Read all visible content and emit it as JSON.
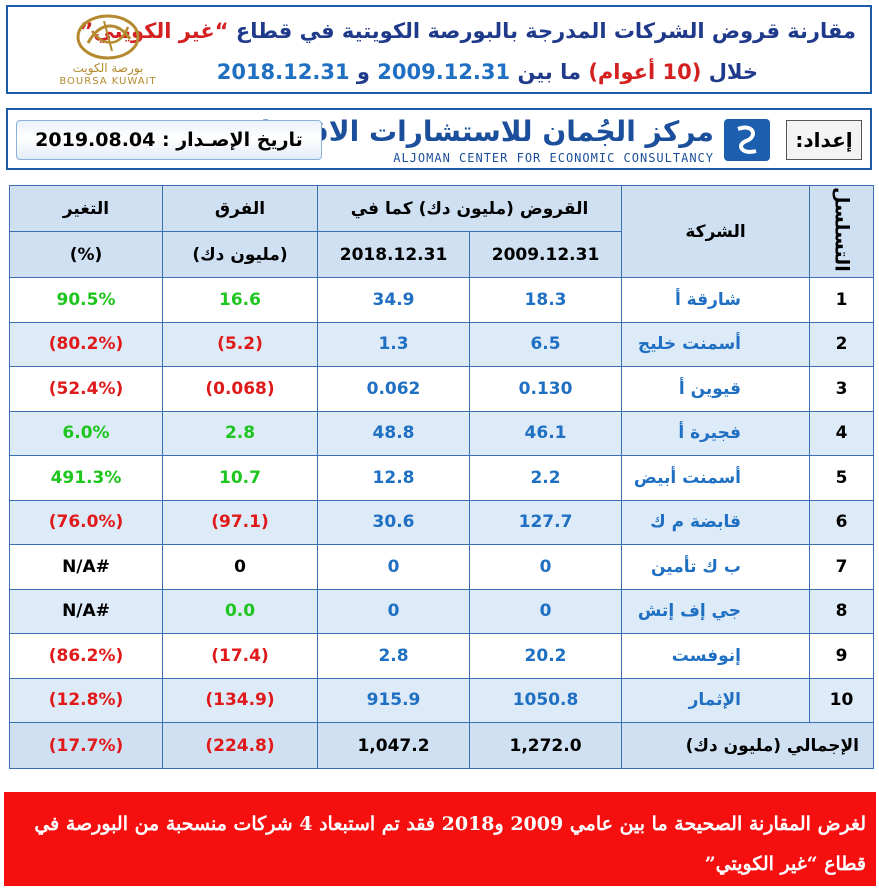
{
  "title": {
    "line1_main": "مقارنة قروض الشركات المدرجة بالبورصة الكويتية في قطاع",
    "line1_sector": "“غير الكويتي”",
    "line2_prefix": "خلال",
    "line2_period": "(10 أعوام)",
    "line2_between": "ما بين",
    "line2_date1": "2009.12.31",
    "line2_and": "و",
    "line2_date2": "2018.12.31"
  },
  "bourse_logo": {
    "arabic": "بورصة الكويت",
    "english": "BOURSA KUWAIT",
    "icon": "bourse-emblem-icon"
  },
  "banner": {
    "prepared_label": "إعداد:",
    "center_name_ar": "مركز الجُمان للاستشارات الاقتصادية",
    "center_name_en": "ALJOMAN CENTER FOR ECONOMIC CONSULTANCY",
    "issue_label": "تاريخ الإصـدار :",
    "issue_date": "2019.08.04"
  },
  "table": {
    "headers": {
      "serial": "التسلسل",
      "company": "الشركة",
      "loans_group": "القروض (مليون دك) كما في",
      "date1": "2009.12.31",
      "date2": "2018.12.31",
      "diff": "الفرق",
      "diff_unit": "(مليون دك)",
      "change": "التغير",
      "change_unit": "(%)"
    },
    "rows": [
      {
        "serial": "1",
        "company": "شارقة أ",
        "v2009": "18.3",
        "v2018": "34.9",
        "diff": "16.6",
        "change": "90.5%",
        "sign": "pos"
      },
      {
        "serial": "2",
        "company": "أسمنت خليج",
        "v2009": "6.5",
        "v2018": "1.3",
        "diff": "(5.2)",
        "change": "(80.2%)",
        "sign": "neg"
      },
      {
        "serial": "3",
        "company": "قيوين أ",
        "v2009": "0.130",
        "v2018": "0.062",
        "diff": "(0.068)",
        "change": "(52.4%)",
        "sign": "neg"
      },
      {
        "serial": "4",
        "company": "فجيرة أ",
        "v2009": "46.1",
        "v2018": "48.8",
        "diff": "2.8",
        "change": "6.0%",
        "sign": "pos"
      },
      {
        "serial": "5",
        "company": "أسمنت أبيض",
        "v2009": "2.2",
        "v2018": "12.8",
        "diff": "10.7",
        "change": "491.3%",
        "sign": "pos"
      },
      {
        "serial": "6",
        "company": "قابضة م ك",
        "v2009": "127.7",
        "v2018": "30.6",
        "diff": "(97.1)",
        "change": "(76.0%)",
        "sign": "neg"
      },
      {
        "serial": "7",
        "company": "ب ك تأمين",
        "v2009": "0",
        "v2018": "0",
        "diff": "0",
        "change": "#N/A",
        "sign": "neu"
      },
      {
        "serial": "8",
        "company": "جي إف إتش",
        "v2009": "0",
        "v2018": "0",
        "diff": "0.0",
        "change": "#N/A",
        "sign": "zero"
      },
      {
        "serial": "9",
        "company": "إنوفست",
        "v2009": "20.2",
        "v2018": "2.8",
        "diff": "(17.4)",
        "change": "(86.2%)",
        "sign": "neg"
      },
      {
        "serial": "10",
        "company": "الإثمار",
        "v2009": "1050.8",
        "v2018": "915.9",
        "diff": "(134.9)",
        "change": "(12.8%)",
        "sign": "neg"
      }
    ],
    "total": {
      "label": "الإجمالي (مليون دك)",
      "v2009": "1,272.0",
      "v2018": "1,047.2",
      "diff": "(224.8)",
      "change": "(17.7%)"
    }
  },
  "note": {
    "text": "لغرض المقارنة الصحيحة ما بين عامي 2009 و2018 فقد تم استبعاد 4 شركات منسحبة من البورصة في قطاع “غير الكويتي”"
  },
  "colors": {
    "positive": "#1ec51e",
    "negative": "#e01a1a",
    "value_blue": "#1f6fc2",
    "header_bg": "#cfe0f2",
    "note_bg": "#f50f0f"
  }
}
